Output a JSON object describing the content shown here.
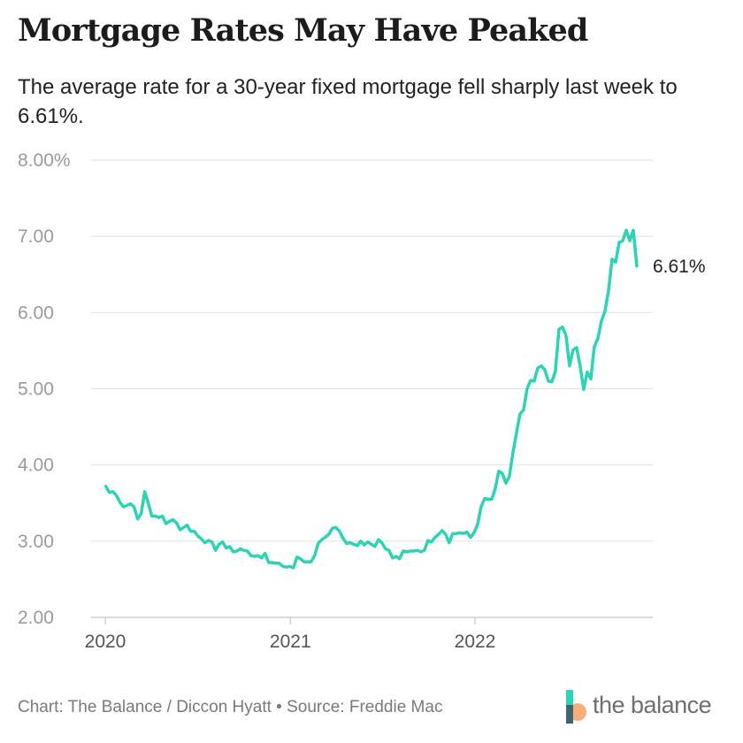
{
  "title": "Mortgage Rates May Have Peaked",
  "subtitle": "The average rate for a 30-year fixed mortgage fell sharply last week to 6.61%.",
  "footer": "Chart: The Balance / Diccon Hyatt • Source: Freddie Mac",
  "brand": {
    "name": "the balance",
    "icon": "the-balance-logo"
  },
  "colors": {
    "line": "#2dd4b4",
    "grid": "#e3e3e3",
    "axis": "#cfcfcf"
  },
  "chart_data": {
    "type": "line",
    "title": "Mortgage Rates May Have Peaked",
    "xlabel": "",
    "ylabel": "",
    "ylim": [
      2.0,
      8.0
    ],
    "xlim": [
      "2020-01-01",
      "2022-11-25"
    ],
    "yticks": [
      "8.00%",
      "7.00",
      "6.00",
      "5.00",
      "4.00",
      "3.00",
      "2.00"
    ],
    "yticks_values": [
      8,
      7,
      6,
      5,
      4,
      3,
      2
    ],
    "xticks": [
      "2020",
      "2021",
      "2022"
    ],
    "xticks_values": [
      "2020-01-01",
      "2021-01-01",
      "2022-01-01"
    ],
    "grid": true,
    "end_label": "6.61%",
    "series": [
      {
        "x": [
          "2020-01-02",
          "2020-01-09",
          "2020-01-16",
          "2020-01-23",
          "2020-01-30",
          "2020-02-06",
          "2020-02-13",
          "2020-02-20",
          "2020-02-27",
          "2020-03-05",
          "2020-03-12",
          "2020-03-19",
          "2020-03-26",
          "2020-04-02",
          "2020-04-09",
          "2020-04-16",
          "2020-04-23",
          "2020-04-30",
          "2020-05-07",
          "2020-05-14",
          "2020-05-21",
          "2020-05-28",
          "2020-06-04",
          "2020-06-11",
          "2020-06-18",
          "2020-06-25",
          "2020-07-02",
          "2020-07-09",
          "2020-07-16",
          "2020-07-23",
          "2020-07-30",
          "2020-08-06",
          "2020-08-13",
          "2020-08-20",
          "2020-08-27",
          "2020-09-03",
          "2020-09-10",
          "2020-09-17",
          "2020-09-24",
          "2020-10-01",
          "2020-10-08",
          "2020-10-15",
          "2020-10-22",
          "2020-10-29",
          "2020-11-05",
          "2020-11-12",
          "2020-11-19",
          "2020-11-26",
          "2020-12-03",
          "2020-12-10",
          "2020-12-17",
          "2020-12-24",
          "2020-12-31",
          "2021-01-07",
          "2021-01-14",
          "2021-01-21",
          "2021-01-28",
          "2021-02-04",
          "2021-02-11",
          "2021-02-18",
          "2021-02-25",
          "2021-03-04",
          "2021-03-11",
          "2021-03-18",
          "2021-03-25",
          "2021-04-01",
          "2021-04-08",
          "2021-04-15",
          "2021-04-22",
          "2021-04-29",
          "2021-05-06",
          "2021-05-13",
          "2021-05-20",
          "2021-05-27",
          "2021-06-03",
          "2021-06-10",
          "2021-06-17",
          "2021-06-24",
          "2021-07-01",
          "2021-07-08",
          "2021-07-15",
          "2021-07-22",
          "2021-07-29",
          "2021-08-05",
          "2021-08-12",
          "2021-08-19",
          "2021-08-26",
          "2021-09-02",
          "2021-09-09",
          "2021-09-16",
          "2021-09-23",
          "2021-09-30",
          "2021-10-07",
          "2021-10-14",
          "2021-10-21",
          "2021-10-28",
          "2021-11-04",
          "2021-11-11",
          "2021-11-18",
          "2021-11-25",
          "2021-12-02",
          "2021-12-09",
          "2021-12-16",
          "2021-12-23",
          "2021-12-30",
          "2022-01-06",
          "2022-01-13",
          "2022-01-20",
          "2022-01-27",
          "2022-02-03",
          "2022-02-10",
          "2022-02-17",
          "2022-02-24",
          "2022-03-03",
          "2022-03-10",
          "2022-03-17",
          "2022-03-24",
          "2022-03-31",
          "2022-04-07",
          "2022-04-14",
          "2022-04-21",
          "2022-04-28",
          "2022-05-05",
          "2022-05-12",
          "2022-05-19",
          "2022-05-26",
          "2022-06-02",
          "2022-06-09",
          "2022-06-16",
          "2022-06-23",
          "2022-06-30",
          "2022-07-07",
          "2022-07-14",
          "2022-07-21",
          "2022-07-28",
          "2022-08-04",
          "2022-08-11",
          "2022-08-18",
          "2022-08-25",
          "2022-09-01",
          "2022-09-08",
          "2022-09-15",
          "2022-09-22",
          "2022-09-29",
          "2022-10-06",
          "2022-10-13",
          "2022-10-20",
          "2022-10-27",
          "2022-11-03",
          "2022-11-10",
          "2022-11-17"
        ],
        "y": [
          3.72,
          3.64,
          3.65,
          3.6,
          3.51,
          3.45,
          3.47,
          3.49,
          3.45,
          3.29,
          3.36,
          3.65,
          3.5,
          3.33,
          3.33,
          3.31,
          3.33,
          3.23,
          3.26,
          3.28,
          3.24,
          3.15,
          3.18,
          3.21,
          3.13,
          3.13,
          3.07,
          3.03,
          2.98,
          3.01,
          2.99,
          2.88,
          2.96,
          2.99,
          2.91,
          2.93,
          2.86,
          2.87,
          2.9,
          2.88,
          2.87,
          2.81,
          2.8,
          2.81,
          2.78,
          2.84,
          2.72,
          2.72,
          2.71,
          2.71,
          2.67,
          2.66,
          2.67,
          2.65,
          2.79,
          2.77,
          2.73,
          2.73,
          2.73,
          2.81,
          2.97,
          3.02,
          3.05,
          3.09,
          3.17,
          3.18,
          3.13,
          3.04,
          2.97,
          2.98,
          2.96,
          2.94,
          3.0,
          2.95,
          2.99,
          2.96,
          2.93,
          3.02,
          2.98,
          2.9,
          2.88,
          2.78,
          2.8,
          2.77,
          2.87,
          2.86,
          2.87,
          2.87,
          2.88,
          2.86,
          2.88,
          3.01,
          2.99,
          3.05,
          3.09,
          3.14,
          3.09,
          2.98,
          3.1,
          3.1,
          3.11,
          3.1,
          3.12,
          3.05,
          3.11,
          3.22,
          3.45,
          3.56,
          3.55,
          3.55,
          3.69,
          3.92,
          3.89,
          3.76,
          3.85,
          4.16,
          4.42,
          4.67,
          4.72,
          5.0,
          5.11,
          5.1,
          5.27,
          5.3,
          5.25,
          5.1,
          5.09,
          5.23,
          5.78,
          5.81,
          5.7,
          5.3,
          5.51,
          5.54,
          5.3,
          4.99,
          5.22,
          5.13,
          5.55,
          5.66,
          5.89,
          6.02,
          6.29,
          6.7,
          6.66,
          6.92,
          6.94,
          7.08,
          6.94,
          7.08,
          6.61
        ]
      }
    ]
  }
}
